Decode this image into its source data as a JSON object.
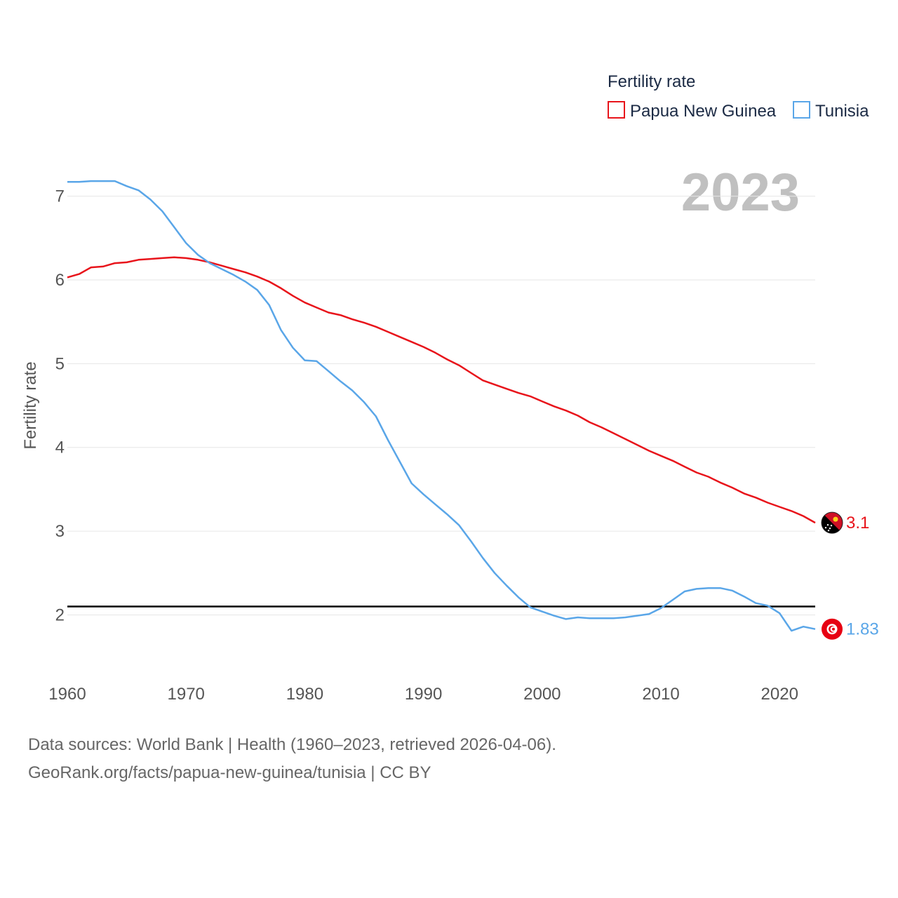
{
  "chart_data": {
    "type": "line",
    "title": "Fertility rate",
    "ylabel": "Fertility rate",
    "xlabel": "",
    "year_label": "2023",
    "xlim": [
      1960,
      2023
    ],
    "ylim": [
      1.3,
      7.6
    ],
    "x_ticks": [
      "1960",
      "1970",
      "1980",
      "1990",
      "2000",
      "2010",
      "2020"
    ],
    "y_ticks": [
      "2",
      "3",
      "4",
      "5",
      "6",
      "7"
    ],
    "reference_line": {
      "y": 2.1,
      "color": "#000000"
    },
    "legend_position": "top-right",
    "x": [
      1960,
      1961,
      1962,
      1963,
      1964,
      1965,
      1966,
      1967,
      1968,
      1969,
      1970,
      1971,
      1972,
      1973,
      1974,
      1975,
      1976,
      1977,
      1978,
      1979,
      1980,
      1981,
      1982,
      1983,
      1984,
      1985,
      1986,
      1987,
      1988,
      1989,
      1990,
      1991,
      1992,
      1993,
      1994,
      1995,
      1996,
      1997,
      1998,
      1999,
      2000,
      2001,
      2002,
      2003,
      2004,
      2005,
      2006,
      2007,
      2008,
      2009,
      2010,
      2011,
      2012,
      2013,
      2014,
      2015,
      2016,
      2017,
      2018,
      2019,
      2020,
      2021,
      2022,
      2023
    ],
    "series": [
      {
        "name": "Papua New Guinea",
        "color": "#e8141b",
        "end_label": "3.1",
        "values": [
          6.03,
          6.07,
          6.15,
          6.16,
          6.2,
          6.21,
          6.24,
          6.25,
          6.26,
          6.27,
          6.26,
          6.24,
          6.21,
          6.17,
          6.13,
          6.09,
          6.04,
          5.98,
          5.9,
          5.81,
          5.73,
          5.67,
          5.61,
          5.58,
          5.53,
          5.49,
          5.44,
          5.38,
          5.32,
          5.26,
          5.2,
          5.13,
          5.05,
          4.98,
          4.89,
          4.8,
          4.75,
          4.7,
          4.65,
          4.61,
          4.55,
          4.49,
          4.44,
          4.38,
          4.3,
          4.24,
          4.17,
          4.1,
          4.03,
          3.96,
          3.9,
          3.84,
          3.77,
          3.7,
          3.65,
          3.58,
          3.52,
          3.45,
          3.4,
          3.34,
          3.29,
          3.24,
          3.18,
          3.1
        ]
      },
      {
        "name": "Tunisia",
        "color": "#5aa6e8",
        "end_label": "1.83",
        "values": [
          7.17,
          7.17,
          7.18,
          7.18,
          7.18,
          7.12,
          7.07,
          6.96,
          6.82,
          6.63,
          6.44,
          6.3,
          6.2,
          6.13,
          6.06,
          5.98,
          5.88,
          5.7,
          5.4,
          5.19,
          5.04,
          5.03,
          4.91,
          4.79,
          4.68,
          4.54,
          4.37,
          4.09,
          3.83,
          3.57,
          3.44,
          3.32,
          3.2,
          3.07,
          2.88,
          2.68,
          2.5,
          2.35,
          2.21,
          2.09,
          2.04,
          1.99,
          1.95,
          1.97,
          1.96,
          1.96,
          1.96,
          1.97,
          1.99,
          2.01,
          2.08,
          2.18,
          2.28,
          2.31,
          2.32,
          2.32,
          2.29,
          2.22,
          2.14,
          2.11,
          2.02,
          1.81,
          1.86,
          1.83
        ]
      }
    ]
  },
  "footer": {
    "line1": "Data sources: World Bank | Health (1960–2023, retrieved 2026-04-06).",
    "line2": "GeoRank.org/facts/papua-new-guinea/tunisia | CC BY"
  },
  "icons": {
    "png_flag": "papua-new-guinea-flag-icon",
    "tun_flag": "tunisia-flag-icon"
  }
}
